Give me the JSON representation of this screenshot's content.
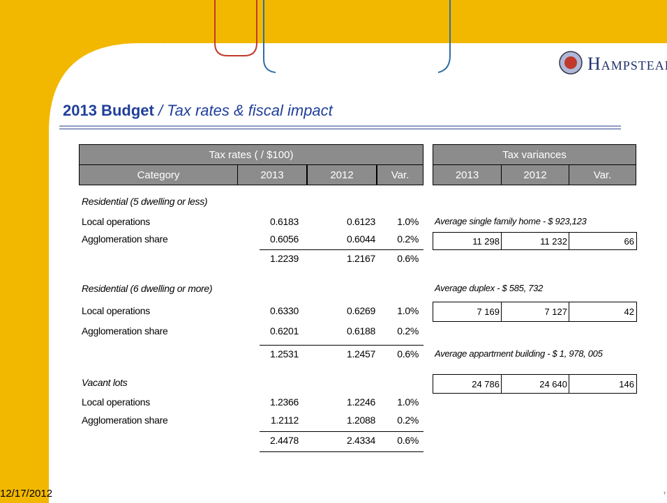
{
  "header": {
    "brand": "Hampstead",
    "title": "2013 Budget",
    "subtitle": "/ Tax rates & fiscal impact"
  },
  "tax_rates": {
    "title": "Tax rates ( / $100)",
    "columns": [
      "Category",
      "2013",
      "2012",
      "Var."
    ],
    "sections": [
      {
        "heading": "Residential (5 dwelling or less)",
        "rows": [
          [
            "Local operations",
            "0.6183",
            "0.6123",
            "1.0%"
          ],
          [
            "Agglomeration share",
            "0.6056",
            "0.6044",
            "0.2%"
          ]
        ],
        "total": [
          "1.2239",
          "1.2167",
          "0.6%"
        ]
      },
      {
        "heading": "Residential (6 dwelling or more)",
        "rows": [
          [
            "Local operations",
            "0.6330",
            "0.6269",
            "1.0%"
          ],
          [
            "Agglomeration share",
            "0.6201",
            "0.6188",
            "0.2%"
          ]
        ],
        "total": [
          "1.2531",
          "1.2457",
          "0.6%"
        ]
      },
      {
        "heading": "Vacant lots",
        "rows": [
          [
            "Local operations",
            "1.2366",
            "1.2246",
            "1.0%"
          ],
          [
            "Agglomeration share",
            "1.2112",
            "1.2088",
            "0.2%"
          ]
        ],
        "total": [
          "2.4478",
          "2.4334",
          "0.6%"
        ]
      }
    ]
  },
  "tax_variances": {
    "title": "Tax variances",
    "columns": [
      "2013",
      "2012",
      "Var."
    ],
    "items": [
      {
        "caption": "Average single family home - $ 923,123",
        "values": [
          "11 298",
          "11 232",
          "66"
        ]
      },
      {
        "caption": "Average duplex - $ 585, 732",
        "values": [
          "7 169",
          "7 127",
          "42"
        ]
      },
      {
        "caption": "Average appartment building - $ 1, 978, 005",
        "values": [
          "24 786",
          "24 640",
          "146"
        ]
      }
    ]
  },
  "footer": {
    "date": "12/17/2012",
    "page": "7"
  }
}
